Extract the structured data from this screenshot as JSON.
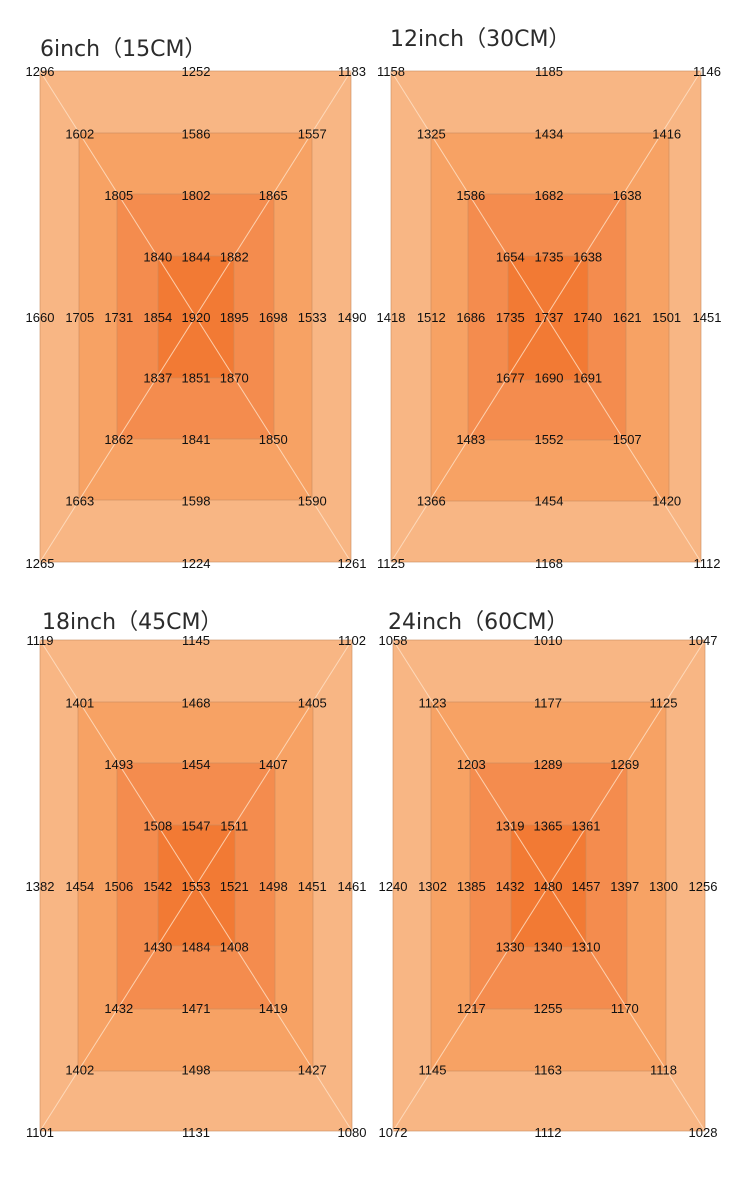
{
  "chart_data": [
    {
      "type": "heatmap",
      "title": "6inch（15CM）",
      "rings": [
        {
          "color": "#f8b684",
          "values": {
            "tl": 1296,
            "tm": 1252,
            "tr": 1183,
            "ml": 1660,
            "mr": 1490,
            "bl": 1265,
            "bm": 1224,
            "br": 1261
          }
        },
        {
          "color": "#f7a264",
          "values": {
            "tl": 1602,
            "tm": 1586,
            "tr": 1557,
            "ml": 1705,
            "mr": 1533,
            "bl": 1663,
            "bm": 1598,
            "br": 1590
          }
        },
        {
          "color": "#f48c4e",
          "values": {
            "tl": 1805,
            "tm": 1802,
            "tr": 1865,
            "ml": 1731,
            "mr": 1698,
            "bl": 1862,
            "bm": 1841,
            "br": 1850
          }
        },
        {
          "color": "#f27a34",
          "values": {
            "tl": 1840,
            "tm": 1844,
            "tr": 1882,
            "ml": 1854,
            "mr": 1895,
            "bl": 1837,
            "bm": 1851,
            "br": 1870
          }
        }
      ],
      "center": 1920
    },
    {
      "type": "heatmap",
      "title": "12inch（30CM）",
      "rings": [
        {
          "color": "#f8b684",
          "values": {
            "tl": 1158,
            "tm": 1185,
            "tr": 1146,
            "ml": 1418,
            "mr": 1451,
            "bl": 1125,
            "bm": 1168,
            "br": 1112
          }
        },
        {
          "color": "#f7a264",
          "values": {
            "tl": 1325,
            "tm": 1434,
            "tr": 1416,
            "ml": 1512,
            "mr": 1501,
            "bl": 1366,
            "bm": 1454,
            "br": 1420
          }
        },
        {
          "color": "#f48c4e",
          "values": {
            "tl": 1586,
            "tm": 1682,
            "tr": 1638,
            "ml": 1686,
            "mr": 1621,
            "bl": 1483,
            "bm": 1552,
            "br": 1507
          }
        },
        {
          "color": "#f27a34",
          "values": {
            "tl": 1654,
            "tm": 1735,
            "tr": 1638,
            "ml": 1735,
            "mr": 1740,
            "bl": 1677,
            "bm": 1690,
            "br": 1691
          }
        }
      ],
      "center": 1737
    },
    {
      "type": "heatmap",
      "title": "18inch（45CM）",
      "rings": [
        {
          "color": "#f8b684",
          "values": {
            "tl": 1119,
            "tm": 1145,
            "tr": 1102,
            "ml": 1382,
            "mr": 1461,
            "bl": 1101,
            "bm": 1131,
            "br": 1080
          }
        },
        {
          "color": "#f7a264",
          "values": {
            "tl": 1401,
            "tm": 1468,
            "tr": 1405,
            "ml": 1454,
            "mr": 1451,
            "bl": 1402,
            "bm": 1498,
            "br": 1427
          }
        },
        {
          "color": "#f48c4e",
          "values": {
            "tl": 1493,
            "tm": 1454,
            "tr": 1407,
            "ml": 1506,
            "mr": 1498,
            "bl": 1432,
            "bm": 1471,
            "br": 1419
          }
        },
        {
          "color": "#f27a34",
          "values": {
            "tl": 1508,
            "tm": 1547,
            "tr": 1511,
            "ml": 1542,
            "mr": 1521,
            "bl": 1430,
            "bm": 1484,
            "br": 1408
          }
        }
      ],
      "center": 1553
    },
    {
      "type": "heatmap",
      "title": "24inch（60CM）",
      "rings": [
        {
          "color": "#f8b684",
          "values": {
            "tl": 1058,
            "tm": 1010,
            "tr": 1047,
            "ml": 1240,
            "mr": 1256,
            "bl": 1072,
            "bm": 1112,
            "br": 1028
          }
        },
        {
          "color": "#f7a264",
          "values": {
            "tl": 1123,
            "tm": 1177,
            "tr": 1125,
            "ml": 1302,
            "mr": 1300,
            "bl": 1145,
            "bm": 1163,
            "br": 1118
          }
        },
        {
          "color": "#f48c4e",
          "values": {
            "tl": 1203,
            "tm": 1289,
            "tr": 1269,
            "ml": 1385,
            "mr": 1397,
            "bl": 1217,
            "bm": 1255,
            "br": 1170
          }
        },
        {
          "color": "#f27a34",
          "values": {
            "tl": 1319,
            "tm": 1365,
            "tr": 1361,
            "ml": 1432,
            "mr": 1457,
            "bl": 1330,
            "bm": 1340,
            "br": 1310
          }
        }
      ],
      "center": 1480
    }
  ]
}
